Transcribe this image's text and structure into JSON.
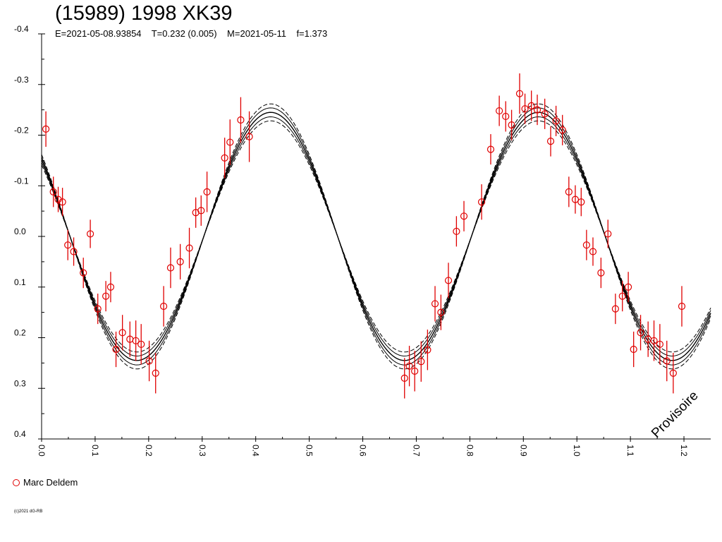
{
  "chart_data": {
    "type": "scatter",
    "title": "(15989) 1998 XK39",
    "subtitle": "E=2021-05-08.93854    T=0.232 (0.005)    M=2021-05-11    f=1.373",
    "xlim": [
      0.0,
      1.25
    ],
    "ylim": [
      -0.4,
      0.4
    ],
    "y_inverted": true,
    "x_ticks": [
      "0.0",
      "0.1",
      "0.2",
      "0.3",
      "0.4",
      "0.5",
      "0.6",
      "0.7",
      "0.8",
      "0.9",
      "1.0",
      "1.1",
      "1.2"
    ],
    "y_ticks": [
      "-0.4",
      "-0.3",
      "-0.2",
      "-0.1",
      "0.0",
      "0.1",
      "0.2",
      "0.3",
      "0.4"
    ],
    "grid": false,
    "legend_position": "bottom-left",
    "watermark": "Provisoire",
    "copyright": "(c)2021 dG-RB",
    "series": [
      {
        "name": "Marc Deldem",
        "color": "#e00000",
        "marker": "open-circle",
        "points": [
          [
            0.008,
            -0.212,
            0.035
          ],
          [
            0.022,
            -0.088,
            0.03
          ],
          [
            0.031,
            -0.073,
            0.025
          ],
          [
            0.039,
            -0.068,
            0.028
          ],
          [
            0.049,
            0.017,
            0.03
          ],
          [
            0.06,
            0.03,
            0.028
          ],
          [
            0.078,
            0.072,
            0.03
          ],
          [
            0.091,
            -0.005,
            0.028
          ],
          [
            0.105,
            0.143,
            0.03
          ],
          [
            0.12,
            0.118,
            0.03
          ],
          [
            0.129,
            0.1,
            0.03
          ],
          [
            0.139,
            0.223,
            0.035
          ],
          [
            0.151,
            0.19,
            0.035
          ],
          [
            0.165,
            0.203,
            0.035
          ],
          [
            0.176,
            0.206,
            0.04
          ],
          [
            0.186,
            0.213,
            0.04
          ],
          [
            0.201,
            0.246,
            0.04
          ],
          [
            0.213,
            0.27,
            0.04
          ],
          [
            0.228,
            0.138,
            0.04
          ],
          [
            0.241,
            0.062,
            0.04
          ],
          [
            0.259,
            0.05,
            0.035
          ],
          [
            0.276,
            0.023,
            0.04
          ],
          [
            0.288,
            -0.047,
            0.03
          ],
          [
            0.298,
            -0.051,
            0.03
          ],
          [
            0.309,
            -0.088,
            0.04
          ],
          [
            0.342,
            -0.155,
            0.04
          ],
          [
            0.352,
            -0.186,
            0.045
          ],
          [
            0.372,
            -0.23,
            0.045
          ],
          [
            0.388,
            -0.197,
            0.05
          ],
          [
            0.678,
            0.28,
            0.04
          ],
          [
            0.687,
            0.256,
            0.04
          ],
          [
            0.697,
            0.266,
            0.04
          ],
          [
            0.709,
            0.247,
            0.04
          ],
          [
            0.721,
            0.224,
            0.04
          ],
          [
            0.735,
            0.133,
            0.035
          ],
          [
            0.746,
            0.15,
            0.035
          ],
          [
            0.76,
            0.087,
            0.035
          ],
          [
            0.775,
            -0.01,
            0.03
          ],
          [
            0.789,
            -0.04,
            0.03
          ],
          [
            0.822,
            -0.068,
            0.035
          ],
          [
            0.839,
            -0.172,
            0.03
          ],
          [
            0.855,
            -0.248,
            0.03
          ],
          [
            0.867,
            -0.237,
            0.03
          ],
          [
            0.878,
            -0.22,
            0.03
          ],
          [
            0.893,
            -0.282,
            0.04
          ],
          [
            0.903,
            -0.252,
            0.03
          ],
          [
            0.915,
            -0.258,
            0.03
          ],
          [
            0.926,
            -0.25,
            0.03
          ],
          [
            0.94,
            -0.242,
            0.03
          ],
          [
            0.951,
            -0.188,
            0.03
          ],
          [
            0.961,
            -0.228,
            0.03
          ],
          [
            0.973,
            -0.21,
            0.03
          ],
          [
            0.985,
            -0.088,
            0.03
          ],
          [
            0.997,
            -0.073,
            0.028
          ],
          [
            1.008,
            -0.068,
            0.028
          ],
          [
            1.018,
            0.017,
            0.03
          ],
          [
            1.03,
            0.03,
            0.028
          ],
          [
            1.045,
            0.072,
            0.03
          ],
          [
            1.058,
            -0.005,
            0.028
          ],
          [
            1.072,
            0.143,
            0.03
          ],
          [
            1.085,
            0.118,
            0.03
          ],
          [
            1.096,
            0.1,
            0.03
          ],
          [
            1.106,
            0.223,
            0.035
          ],
          [
            1.119,
            0.19,
            0.035
          ],
          [
            1.133,
            0.203,
            0.035
          ],
          [
            1.144,
            0.206,
            0.04
          ],
          [
            1.155,
            0.213,
            0.04
          ],
          [
            1.168,
            0.246,
            0.04
          ],
          [
            1.18,
            0.27,
            0.04
          ],
          [
            1.196,
            0.138,
            0.04
          ]
        ]
      }
    ],
    "model": {
      "type": "fourier-fit",
      "description_curves": [
        "fit",
        "upper",
        "lower",
        "upper-dashed",
        "lower-dashed"
      ],
      "offset": 0.0,
      "amplitude_primary": 0.245,
      "amplitude_secondary": 0.0,
      "phase_peak_1": 0.428,
      "phase_peak_2": 0.928,
      "band": 0.009
    }
  }
}
